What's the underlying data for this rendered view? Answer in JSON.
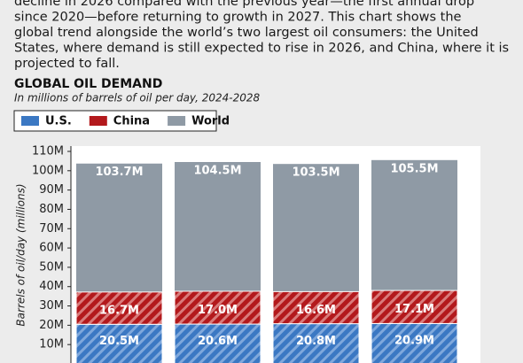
{
  "intro": [
    "decline in 2026 compared with the previous year—the first annual drop",
    "since 2020—before returning to growth in 2027. This chart shows the",
    "global trend alongside the world’s two largest oil consumers: the United",
    "States, where demand is still expected to rise in 2026, and China, where it is",
    "projected to fall."
  ],
  "chart_data": {
    "type": "bar",
    "title": "GLOBAL OIL DEMAND",
    "subtitle": "In millions of barrels of oil per day, 2024-2028",
    "y_label": "Barrels of oil/day (millions)",
    "categories": [
      null,
      null,
      null,
      null
    ],
    "series": [
      {
        "name": "U.S.",
        "color": "#3b78c3",
        "values": [
          20.5,
          20.6,
          20.8,
          20.9
        ],
        "value_labels": [
          "20.5M",
          "20.6M",
          "20.8M",
          "20.9M"
        ]
      },
      {
        "name": "China",
        "color": "#b3191c",
        "values": [
          16.7,
          17.0,
          16.6,
          17.1
        ],
        "value_labels": [
          "16.7M",
          "17.0M",
          "16.6M",
          "17.1M"
        ]
      },
      {
        "name": "World",
        "color": "#8f9aa5",
        "values": [
          103.7,
          104.5,
          103.5,
          105.5
        ],
        "value_labels": [
          "103.7M",
          "104.5M",
          "103.5M",
          "105.5M"
        ]
      }
    ],
    "ylim": [
      0,
      110
    ],
    "yticks": [
      {
        "value": 10,
        "label": "10M"
      },
      {
        "value": 20,
        "label": "20M"
      },
      {
        "value": 30,
        "label": "30M"
      },
      {
        "value": 40,
        "label": "40M"
      },
      {
        "value": 50,
        "label": "50M"
      },
      {
        "value": 60,
        "label": "60M"
      },
      {
        "value": 70,
        "label": "70M"
      },
      {
        "value": 80,
        "label": "80M"
      },
      {
        "value": 90,
        "label": "90M"
      },
      {
        "value": 100,
        "label": "100M"
      },
      {
        "value": 110,
        "label": "110M"
      }
    ]
  }
}
